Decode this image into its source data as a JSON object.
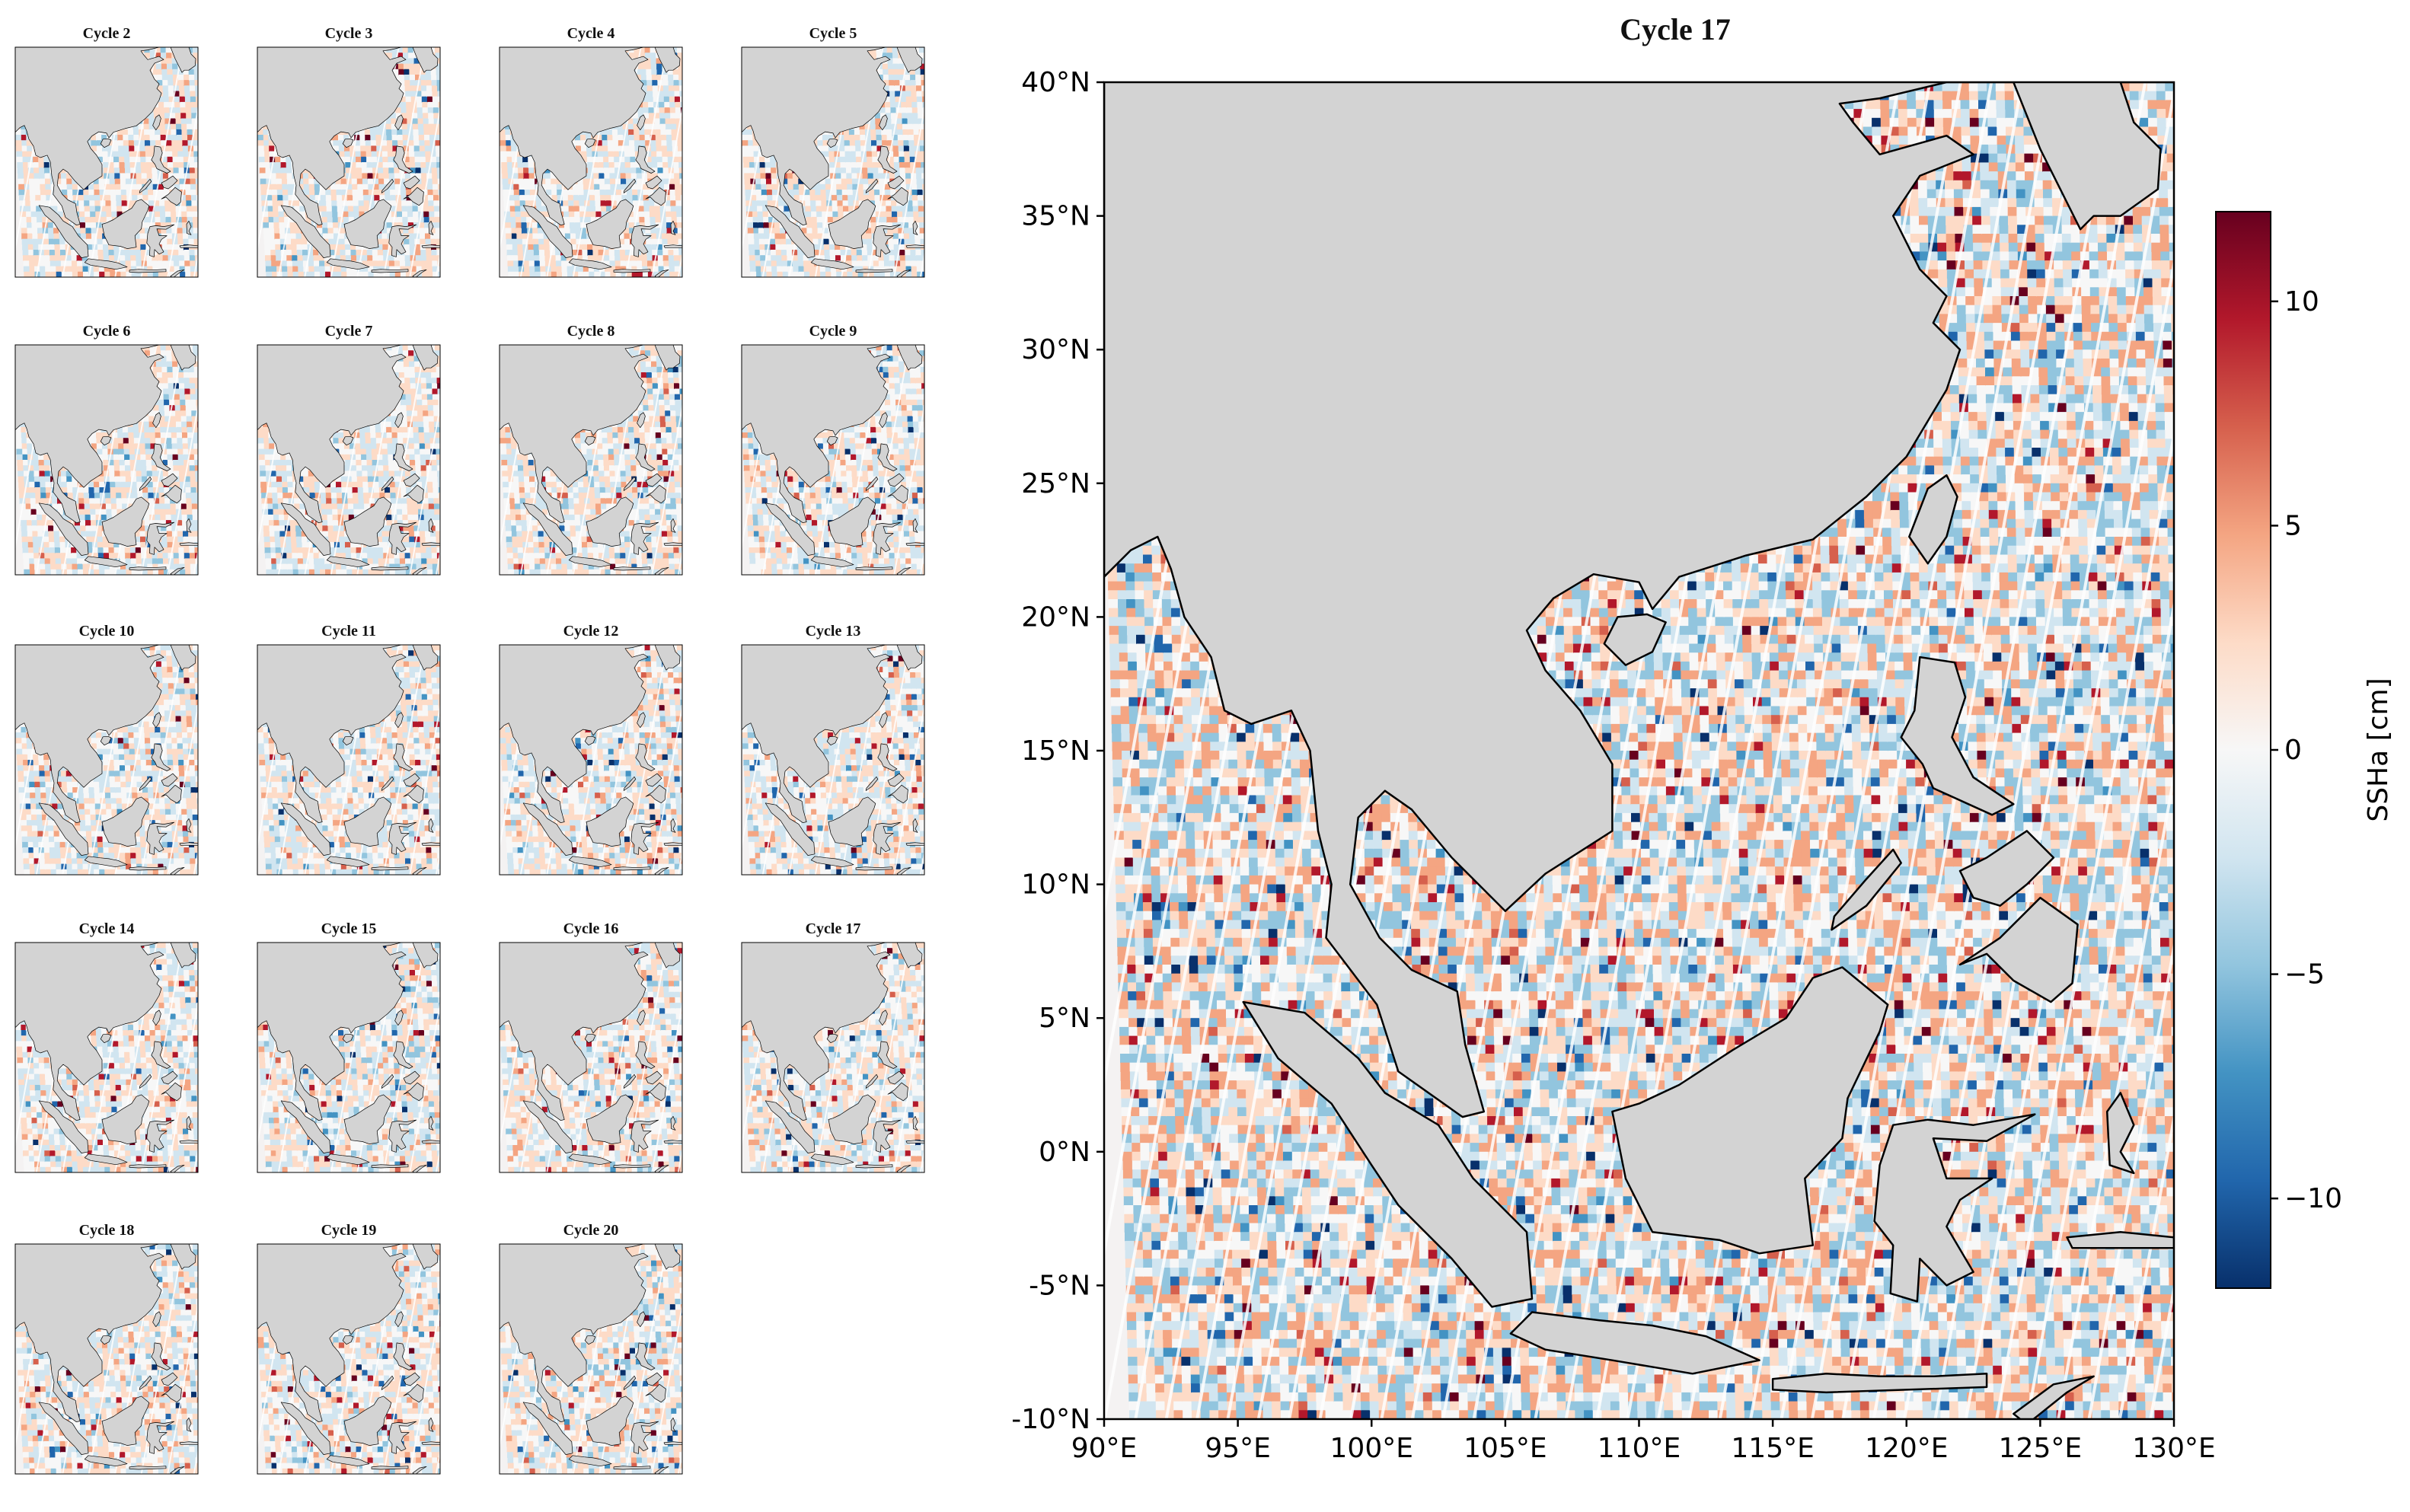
{
  "small_panels": [
    {
      "title": "Cycle 2"
    },
    {
      "title": "Cycle 3"
    },
    {
      "title": "Cycle 4"
    },
    {
      "title": "Cycle 5"
    },
    {
      "title": "Cycle 6"
    },
    {
      "title": "Cycle 7"
    },
    {
      "title": "Cycle 8"
    },
    {
      "title": "Cycle 9"
    },
    {
      "title": "Cycle 10"
    },
    {
      "title": "Cycle 11"
    },
    {
      "title": "Cycle 12"
    },
    {
      "title": "Cycle 13"
    },
    {
      "title": "Cycle 14"
    },
    {
      "title": "Cycle 15"
    },
    {
      "title": "Cycle 16"
    },
    {
      "title": "Cycle 17"
    },
    {
      "title": "Cycle 18"
    },
    {
      "title": "Cycle 19"
    },
    {
      "title": "Cycle 20"
    }
  ],
  "main_map": {
    "title": "Cycle 17",
    "lon_range": [
      90,
      130
    ],
    "lat_range": [
      -10,
      40
    ],
    "lon_ticks": [
      "90°E",
      "95°E",
      "100°E",
      "105°E",
      "110°E",
      "115°E",
      "120°E",
      "125°E",
      "130°E"
    ],
    "lat_ticks": [
      "40°N",
      "35°N",
      "30°N",
      "25°N",
      "20°N",
      "15°N",
      "10°N",
      "5°N",
      "0°N",
      "-5°N",
      "-10°N"
    ]
  },
  "colorbar": {
    "label": "SSHa [cm]",
    "range": [
      -12,
      12
    ],
    "ticks": [
      "10",
      "5",
      "0",
      "−5",
      "−10"
    ],
    "tick_values": [
      10,
      5,
      0,
      -5,
      -10
    ],
    "colormap": "RdBu_r",
    "colors": [
      "#08306b",
      "#2166ac",
      "#4393c3",
      "#92c5de",
      "#d1e5f0",
      "#f7f7f7",
      "#fddbc7",
      "#f4a582",
      "#d6604d",
      "#b2182b",
      "#67001f"
    ]
  },
  "land_color": "#d3d3d3"
}
